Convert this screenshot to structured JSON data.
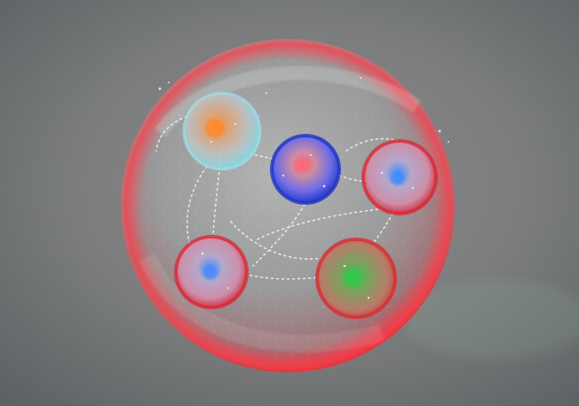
{
  "image": {
    "background_colors": [
      "#5f6264",
      "#7a7c7d",
      "#8b8c8c"
    ],
    "outer_sphere": {
      "name": "outer-membrane-sphere",
      "colors": {
        "rim": "#e1252f",
        "inner": "#c9c9c9",
        "shadow": "#9fa0a1"
      }
    },
    "particles": [
      {
        "name": "particle-orange-cyan",
        "colors": {
          "core": "#ff8a2a",
          "mid": "#d7b08d",
          "shell": "#7fdbe7"
        }
      },
      {
        "name": "particle-blue-red",
        "colors": {
          "core": "#ff5a6d",
          "mid": "#6d6ce6",
          "shell": "#2436c9"
        }
      },
      {
        "name": "particle-red-blue-right",
        "colors": {
          "core": "#3d8bff",
          "mid": "#cf8fa9",
          "shell": "#d31f31"
        }
      },
      {
        "name": "particle-red-blue-left",
        "colors": {
          "core": "#4a86ff",
          "mid": "#c995ab",
          "shell": "#d31f31"
        }
      },
      {
        "name": "particle-red-green",
        "colors": {
          "core": "#35c64c",
          "mid": "#7f8f5c",
          "shell": "#d0292f"
        }
      }
    ],
    "connectors": "#f2f2f2"
  }
}
